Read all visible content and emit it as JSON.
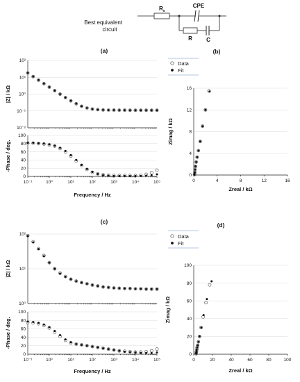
{
  "circuit": {
    "label_line1": "Best equivalent",
    "label_line2": "circuit",
    "rs": "R",
    "rs_sub": "s",
    "cpe": "CPE",
    "r": "R",
    "c": "C"
  },
  "legend": {
    "data_label": "Data",
    "fit_label": "Fit"
  },
  "panels": {
    "a": "(a)",
    "b": "(b)",
    "c": "(c)",
    "d": "(d)"
  },
  "colors": {
    "axis": "#222222",
    "grid": "#d9d9d9",
    "fit": "#111111",
    "data_stroke": "#444444"
  },
  "chart_data": [
    {
      "id": "a-mag",
      "type": "scatter",
      "xscale": "log",
      "yscale": "log",
      "xlim": [
        0.1,
        100000
      ],
      "ylim": [
        0.01,
        100
      ],
      "ylabel": "|Z| / kΩ",
      "yticks": [
        {
          "v": 100,
          "t": "10²"
        },
        {
          "v": 10,
          "t": "10¹"
        },
        {
          "v": 1,
          "t": "10⁰"
        },
        {
          "v": 0.1,
          "t": "10⁻¹"
        },
        {
          "v": 0.01,
          "t": "10⁻²"
        }
      ],
      "xticks": [],
      "series": [
        {
          "name": "Data",
          "x": [
            0.1,
            0.178,
            0.316,
            0.562,
            1,
            1.78,
            3.16,
            5.62,
            10,
            17.8,
            31.6,
            56.2,
            100,
            178,
            316,
            562,
            1000,
            1780,
            3160,
            5620,
            10000,
            17800,
            31600,
            56200,
            100000
          ],
          "y": [
            18,
            11,
            6.8,
            4.2,
            2.6,
            1.6,
            1.0,
            0.62,
            0.4,
            0.27,
            0.19,
            0.15,
            0.13,
            0.12,
            0.115,
            0.113,
            0.112,
            0.111,
            0.111,
            0.11,
            0.11,
            0.11,
            0.11,
            0.11,
            0.11
          ]
        },
        {
          "name": "Fit",
          "x": [
            0.1,
            0.178,
            0.316,
            0.562,
            1,
            1.78,
            3.16,
            5.62,
            10,
            17.8,
            31.6,
            56.2,
            100,
            178,
            316,
            562,
            1000,
            1780,
            3160,
            5620,
            10000,
            17800,
            31600,
            56200,
            100000
          ],
          "y": [
            18,
            11,
            6.8,
            4.2,
            2.6,
            1.6,
            1.0,
            0.62,
            0.4,
            0.27,
            0.19,
            0.15,
            0.13,
            0.12,
            0.115,
            0.113,
            0.112,
            0.111,
            0.111,
            0.11,
            0.11,
            0.11,
            0.11,
            0.11,
            0.11
          ]
        }
      ]
    },
    {
      "id": "a-phase",
      "type": "scatter",
      "xscale": "log",
      "yscale": "linear",
      "xlim": [
        0.1,
        100000
      ],
      "ylim": [
        0,
        100
      ],
      "ylabel": "-Phase / deg.",
      "xlabel": "Frequency / Hz",
      "yticks": [
        {
          "v": 0,
          "t": "0"
        },
        {
          "v": 20,
          "t": "20"
        },
        {
          "v": 40,
          "t": "40"
        },
        {
          "v": 60,
          "t": "60"
        },
        {
          "v": 80,
          "t": "80"
        },
        {
          "v": 100,
          "t": "100"
        }
      ],
      "xticks": [
        {
          "v": 0.1,
          "t": "10⁻¹"
        },
        {
          "v": 1,
          "t": "10⁰"
        },
        {
          "v": 10,
          "t": "10¹"
        },
        {
          "v": 100,
          "t": "10²"
        },
        {
          "v": 1000,
          "t": "10³"
        },
        {
          "v": 10000,
          "t": "10⁴"
        },
        {
          "v": 100000,
          "t": "10⁵"
        }
      ],
      "series": [
        {
          "name": "Data",
          "x": [
            0.1,
            0.178,
            0.316,
            0.562,
            1,
            1.78,
            3.16,
            5.62,
            10,
            17.8,
            31.6,
            56.2,
            100,
            178,
            316,
            562,
            1000,
            1780,
            3160,
            5620,
            10000,
            17800,
            31600,
            56200,
            100000
          ],
          "y": [
            81,
            81,
            80,
            79,
            77,
            74,
            68,
            60,
            50,
            38,
            27,
            17,
            10,
            6,
            4,
            3,
            2,
            2,
            2,
            2,
            2,
            3,
            5,
            9,
            15
          ]
        },
        {
          "name": "Fit",
          "x": [
            0.1,
            0.178,
            0.316,
            0.562,
            1,
            1.78,
            3.16,
            5.62,
            10,
            17.8,
            31.6,
            56.2,
            100,
            178,
            316,
            562,
            1000,
            1780,
            3160,
            5620,
            10000,
            17800,
            31600,
            56200,
            100000
          ],
          "y": [
            82,
            82,
            81,
            80,
            78,
            75,
            70,
            62,
            52,
            40,
            28,
            18,
            11,
            6,
            3,
            2,
            1,
            1,
            1,
            1,
            1,
            1,
            2,
            3,
            5
          ]
        }
      ]
    },
    {
      "id": "b-nyquist",
      "type": "scatter",
      "xscale": "linear",
      "yscale": "linear",
      "xlim": [
        0,
        16
      ],
      "ylim": [
        0,
        16
      ],
      "xlabel": "Zreal / kΩ",
      "ylabel": "Zimag / kΩ",
      "xticks": [
        {
          "v": 0,
          "t": "0"
        },
        {
          "v": 4,
          "t": "4"
        },
        {
          "v": 8,
          "t": "8"
        },
        {
          "v": 12,
          "t": "12"
        },
        {
          "v": 16,
          "t": "16"
        }
      ],
      "yticks": [
        {
          "v": 0,
          "t": "0"
        },
        {
          "v": 4,
          "t": "4"
        },
        {
          "v": 8,
          "t": "8"
        },
        {
          "v": 12,
          "t": "12"
        },
        {
          "v": 16,
          "t": "16"
        }
      ],
      "series": [
        {
          "name": "Data",
          "x": [
            0.12,
            0.14,
            0.18,
            0.22,
            0.3,
            0.42,
            0.58,
            0.8,
            1.1,
            1.5,
            2.0,
            2.6
          ],
          "y": [
            0.05,
            0.2,
            0.5,
            1.0,
            1.6,
            2.4,
            3.3,
            4.5,
            6.2,
            9.0,
            12.0,
            15.5
          ]
        },
        {
          "name": "Fit",
          "x": [
            0.12,
            0.14,
            0.18,
            0.22,
            0.3,
            0.42,
            0.58,
            0.8,
            1.1,
            1.5,
            2.0,
            2.7
          ],
          "y": [
            0.05,
            0.2,
            0.5,
            1.0,
            1.6,
            2.4,
            3.3,
            4.5,
            6.2,
            9.0,
            12.0,
            15.4
          ]
        }
      ]
    },
    {
      "id": "c-mag",
      "type": "scatter",
      "xscale": "log",
      "yscale": "log",
      "xlim": [
        0.1,
        100000
      ],
      "ylim": [
        1,
        100
      ],
      "ylabel": "|Z| / kΩ",
      "yticks": [
        {
          "v": 100,
          "t": "10²"
        },
        {
          "v": 10,
          "t": "10¹"
        },
        {
          "v": 1,
          "t": "10⁰"
        }
      ],
      "xticks": [],
      "series": [
        {
          "name": "Data",
          "x": [
            0.1,
            0.178,
            0.316,
            0.562,
            1,
            1.78,
            3.16,
            5.62,
            10,
            17.8,
            31.6,
            56.2,
            100,
            178,
            316,
            562,
            1000,
            1780,
            3160,
            5620,
            10000,
            17800,
            31600,
            56200,
            100000
          ],
          "y": [
            90,
            60,
            38,
            24,
            15,
            10,
            7.5,
            6.0,
            5.0,
            4.4,
            4.0,
            3.7,
            3.4,
            3.2,
            3.0,
            2.9,
            2.8,
            2.75,
            2.7,
            2.7,
            2.65,
            2.65,
            2.6,
            2.6,
            2.6
          ]
        },
        {
          "name": "Fit",
          "x": [
            0.1,
            0.178,
            0.316,
            0.562,
            1,
            1.78,
            3.16,
            5.62,
            10,
            17.8,
            31.6,
            56.2,
            100,
            178,
            316,
            562,
            1000,
            1780,
            3160,
            5620,
            10000,
            17800,
            31600,
            56200,
            100000
          ],
          "y": [
            88,
            58,
            37,
            23,
            15,
            10,
            7.3,
            5.9,
            5.0,
            4.4,
            4.0,
            3.7,
            3.4,
            3.2,
            3.0,
            2.9,
            2.8,
            2.75,
            2.7,
            2.7,
            2.65,
            2.65,
            2.6,
            2.6,
            2.6
          ]
        }
      ]
    },
    {
      "id": "c-phase",
      "type": "scatter",
      "xscale": "log",
      "yscale": "linear",
      "xlim": [
        0.1,
        100000
      ],
      "ylim": [
        0,
        100
      ],
      "ylabel": "-Phase / deg.",
      "xlabel": "Frequency / Hz",
      "yticks": [
        {
          "v": 0,
          "t": "0"
        },
        {
          "v": 20,
          "t": "20"
        },
        {
          "v": 40,
          "t": "40"
        },
        {
          "v": 60,
          "t": "60"
        },
        {
          "v": 80,
          "t": "80"
        },
        {
          "v": 100,
          "t": "100"
        }
      ],
      "xticks": [
        {
          "v": 0.1,
          "t": "10⁻¹"
        },
        {
          "v": 1,
          "t": "10⁰"
        },
        {
          "v": 10,
          "t": "10¹"
        },
        {
          "v": 100,
          "t": "10²"
        },
        {
          "v": 1000,
          "t": "10³"
        },
        {
          "v": 10000,
          "t": "10⁴"
        },
        {
          "v": 100000,
          "t": "10⁵"
        }
      ],
      "series": [
        {
          "name": "Data",
          "x": [
            0.1,
            0.178,
            0.316,
            0.562,
            1,
            1.78,
            3.16,
            5.62,
            10,
            17.8,
            31.6,
            56.2,
            100,
            178,
            316,
            562,
            1000,
            1780,
            3160,
            5620,
            10000,
            17800,
            31600,
            56200,
            100000
          ],
          "y": [
            75,
            74,
            72,
            68,
            62,
            52,
            42,
            33,
            27,
            24,
            22,
            20,
            18,
            16,
            14,
            12,
            10,
            8,
            7,
            6,
            5,
            5,
            6,
            8,
            12
          ]
        },
        {
          "name": "Fit",
          "x": [
            0.1,
            0.178,
            0.316,
            0.562,
            1,
            1.78,
            3.16,
            5.62,
            10,
            17.8,
            31.6,
            56.2,
            100,
            178,
            316,
            562,
            1000,
            1780,
            3160,
            5620,
            10000,
            17800,
            31600,
            56200,
            100000
          ],
          "y": [
            77,
            76,
            74,
            70,
            64,
            55,
            45,
            35,
            28,
            24,
            22,
            20,
            18,
            16,
            14,
            12,
            10,
            8,
            6,
            5,
            4,
            3,
            3,
            3,
            4
          ]
        }
      ]
    },
    {
      "id": "d-nyquist",
      "type": "scatter",
      "xscale": "linear",
      "yscale": "linear",
      "xlim": [
        0,
        100
      ],
      "ylim": [
        0,
        100
      ],
      "xlabel": "Zreal / kΩ",
      "ylabel": "Zimag / kΩ",
      "xticks": [
        {
          "v": 0,
          "t": "0"
        },
        {
          "v": 20,
          "t": "20"
        },
        {
          "v": 40,
          "t": "40"
        },
        {
          "v": 60,
          "t": "60"
        },
        {
          "v": 80,
          "t": "80"
        },
        {
          "v": 100,
          "t": "100"
        }
      ],
      "yticks": [
        {
          "v": 0,
          "t": "0"
        },
        {
          "v": 20,
          "t": "20"
        },
        {
          "v": 40,
          "t": "40"
        },
        {
          "v": 60,
          "t": "60"
        },
        {
          "v": 80,
          "t": "80"
        },
        {
          "v": 100,
          "t": "100"
        }
      ],
      "series": [
        {
          "name": "Data",
          "x": [
            2.6,
            2.7,
            2.9,
            3.2,
            3.6,
            4.2,
            5.0,
            6.2,
            7.8,
            10,
            13,
            17
          ],
          "y": [
            0.5,
            1.5,
            3,
            5,
            7.5,
            10,
            14,
            20,
            30,
            42,
            58,
            78
          ]
        },
        {
          "name": "Fit",
          "x": [
            2.6,
            2.7,
            2.9,
            3.2,
            3.6,
            4.2,
            5.0,
            6.2,
            8.0,
            10.5,
            14,
            19
          ],
          "y": [
            0.5,
            1.5,
            3,
            5,
            7.5,
            10,
            14,
            20,
            30,
            44,
            62,
            82
          ]
        }
      ]
    }
  ]
}
